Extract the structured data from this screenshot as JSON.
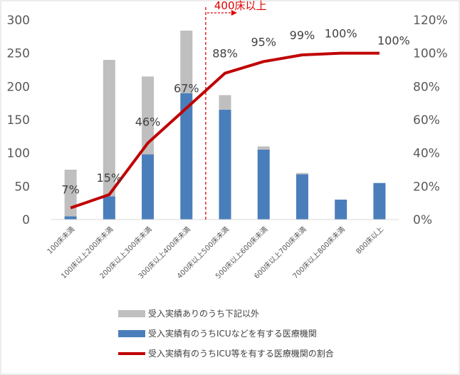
{
  "chart_data": {
    "type": "bar",
    "stacked": true,
    "categories": [
      "100床未満",
      "100床以上200床未満",
      "200床以上300床未満",
      "300床以上400床未満",
      "400床以上500床未満",
      "500床以上600床未満",
      "600床以上700床未満",
      "700床以上800床未満",
      "800床以上"
    ],
    "series": [
      {
        "name": "受入実績有のうちICUなどを有する医療機関",
        "kind": "bar",
        "axis": "left",
        "color": "#4a7ebb",
        "values": [
          5,
          35,
          98,
          190,
          165,
          105,
          68,
          30,
          55
        ]
      },
      {
        "name": "受入実績ありのうち下記以外",
        "kind": "bar",
        "axis": "left",
        "color": "#bfbfbf",
        "values": [
          70,
          205,
          117,
          94,
          22,
          5,
          2,
          0,
          0
        ]
      },
      {
        "name": "受入実績有のうちICU等を有する医療機関の割合",
        "kind": "line",
        "axis": "right",
        "color": "#c00000",
        "values": [
          7,
          15,
          46,
          67,
          88,
          95,
          99,
          100,
          100
        ],
        "labels": [
          "7%",
          "15%",
          "46%",
          "67%",
          "88%",
          "95%",
          "99%",
          "100%",
          "100%"
        ]
      }
    ],
    "y_left": {
      "min": 0,
      "max": 300,
      "ticks": [
        "0",
        "50",
        "100",
        "150",
        "200",
        "250",
        "300"
      ]
    },
    "y_right": {
      "min": 0,
      "max": 120,
      "ticks": [
        "0%",
        "20%",
        "40%",
        "60%",
        "80%",
        "100%",
        "120%"
      ]
    },
    "annotation": {
      "text": "400床以上",
      "divider_after_category": 3
    },
    "legend": {
      "placement": "bottom",
      "entries": [
        "受入実績ありのうち下記以外",
        "受入実績有のうちICUなどを有する医療機関",
        "受入実績有のうちICU等を有する医療機関の割合"
      ]
    },
    "grid": false
  }
}
